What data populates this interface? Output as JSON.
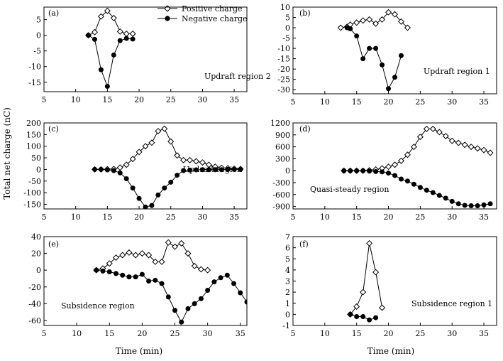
{
  "figure": {
    "ylabel": "Total net charge (nC)",
    "xlabel": "Time (min)",
    "legend": {
      "positive": "Positive charge",
      "negative": "Negative charge",
      "placement": "top-center of panel (a)"
    }
  },
  "chart_data": [
    {
      "id": "a",
      "type": "line",
      "panel_label": "(a)",
      "annotation": "Updraft region 2",
      "xlim": [
        5,
        37
      ],
      "ylim": [
        -18,
        9
      ],
      "xticks": [
        5,
        10,
        15,
        20,
        25,
        30,
        35
      ],
      "yticks": [
        5,
        0,
        -5,
        -10,
        -15
      ],
      "xlabel": "",
      "ylabel": "Total net charge (nC)",
      "series": [
        {
          "name": "Positive charge",
          "x": [
            12,
            13,
            14,
            15,
            16,
            17,
            18,
            19
          ],
          "values": [
            0,
            1,
            6,
            7.8,
            5.5,
            1.2,
            0.5,
            0.5
          ]
        },
        {
          "name": "Negative charge",
          "x": [
            12,
            13,
            14,
            15,
            16,
            17,
            18,
            19
          ],
          "values": [
            0,
            -1.3,
            -11,
            -16.3,
            -6.3,
            -1.7,
            -1,
            -1.2
          ]
        }
      ]
    },
    {
      "id": "b",
      "type": "line",
      "panel_label": "(b)",
      "annotation": "Updraft region 1",
      "xlim": [
        5,
        37
      ],
      "ylim": [
        -32,
        10
      ],
      "xticks": [
        5,
        10,
        15,
        20,
        25,
        30,
        35
      ],
      "yticks": [
        10,
        5,
        0,
        -5,
        -10,
        -15,
        -20,
        -25,
        -30
      ],
      "xlabel": "",
      "ylabel": "Total net charge (nC)",
      "series": [
        {
          "name": "Positive charge",
          "x": [
            12.5,
            13.5,
            14,
            15,
            16,
            17,
            18,
            19,
            20,
            21,
            22,
            23
          ],
          "values": [
            0,
            0.5,
            1.5,
            2.5,
            3.5,
            4,
            2,
            4,
            7.5,
            6.5,
            3,
            0
          ]
        },
        {
          "name": "Negative charge",
          "x": [
            13.5,
            14,
            15,
            16,
            17,
            18,
            19,
            20,
            21,
            22
          ],
          "values": [
            0,
            -0.5,
            -4,
            -15,
            -10,
            -10,
            -18,
            -29.5,
            -24,
            -13.5
          ]
        }
      ]
    },
    {
      "id": "c",
      "type": "line",
      "panel_label": "(c)",
      "annotation": "Updraft region",
      "xlim": [
        5,
        37
      ],
      "ylim": [
        -170,
        200
      ],
      "xticks": [
        5,
        10,
        15,
        20,
        25,
        30,
        35
      ],
      "yticks": [
        200,
        150,
        100,
        50,
        0,
        -50,
        -100,
        -150
      ],
      "xlabel": "",
      "ylabel": "Total net charge (nC)",
      "series": [
        {
          "name": "Positive charge",
          "x": [
            13,
            14,
            15,
            16,
            17,
            18,
            19,
            20,
            21,
            22,
            23,
            24,
            25,
            26,
            27,
            28,
            29,
            30,
            31,
            32,
            33,
            34,
            35,
            36
          ],
          "values": [
            0,
            0,
            1,
            2,
            8,
            20,
            45,
            75,
            100,
            115,
            165,
            175,
            120,
            60,
            40,
            40,
            35,
            30,
            20,
            12,
            7,
            5,
            3,
            2
          ]
        },
        {
          "name": "Negative charge",
          "x": [
            13,
            14,
            15,
            16,
            17,
            18,
            19,
            20,
            21,
            22,
            23,
            24,
            25,
            26,
            27,
            28,
            29,
            30,
            31,
            32,
            33,
            34,
            35,
            36
          ],
          "values": [
            0,
            0,
            -2,
            -5,
            -15,
            -40,
            -80,
            -125,
            -162,
            -155,
            -110,
            -80,
            -55,
            -25,
            -5,
            -3,
            -2,
            -1,
            -1,
            -1,
            -1,
            0,
            0,
            0
          ]
        }
      ]
    },
    {
      "id": "d",
      "type": "line",
      "panel_label": "(d)",
      "annotation": "Quasi-steady region",
      "xlim": [
        5,
        37
      ],
      "ylim": [
        -960,
        1200
      ],
      "xticks": [
        5,
        10,
        15,
        20,
        25,
        30,
        35
      ],
      "yticks": [
        1200,
        900,
        600,
        300,
        0,
        -300,
        -600,
        -900
      ],
      "xlabel": "",
      "ylabel": "Total net charge (nC)",
      "series": [
        {
          "name": "Positive charge",
          "x": [
            13,
            14,
            15,
            16,
            17,
            18,
            19,
            20,
            21,
            22,
            23,
            24,
            25,
            26,
            27,
            28,
            29,
            30,
            31,
            32,
            33,
            34,
            35,
            36
          ],
          "values": [
            0,
            0,
            0,
            0,
            10,
            30,
            60,
            100,
            150,
            250,
            400,
            600,
            850,
            1050,
            1050,
            970,
            870,
            750,
            700,
            650,
            600,
            560,
            520,
            450
          ]
        },
        {
          "name": "Negative charge",
          "x": [
            13,
            14,
            15,
            16,
            17,
            18,
            19,
            20,
            21,
            22,
            23,
            24,
            25,
            26,
            27,
            28,
            29,
            30,
            31,
            32,
            33,
            34,
            35,
            36
          ],
          "values": [
            0,
            0,
            0,
            0,
            -10,
            -20,
            -30,
            -60,
            -120,
            -210,
            -260,
            -340,
            -420,
            -490,
            -550,
            -620,
            -690,
            -770,
            -830,
            -870,
            -880,
            -880,
            -860,
            -830
          ]
        }
      ]
    },
    {
      "id": "e",
      "type": "line",
      "panel_label": "(e)",
      "annotation": "Subsidence region",
      "xlim": [
        5,
        36
      ],
      "ylim": [
        -66,
        40
      ],
      "xticks": [
        5,
        10,
        15,
        20,
        25,
        30,
        35
      ],
      "yticks": [
        40,
        20,
        0,
        -20,
        -40,
        -60
      ],
      "xlabel": "Time (min)",
      "ylabel": "Total net charge (nC)",
      "series": [
        {
          "name": "Positive charge",
          "x": [
            13,
            14,
            15,
            16,
            17,
            18,
            19,
            20,
            21,
            22,
            23,
            24,
            25,
            26,
            27,
            28,
            29,
            30
          ],
          "values": [
            0,
            2,
            8,
            15,
            18,
            21,
            18,
            20,
            18,
            10,
            10,
            33,
            28,
            32,
            20,
            5,
            1,
            0
          ]
        },
        {
          "name": "Negative charge",
          "x": [
            13,
            14,
            15,
            16,
            17,
            18,
            19,
            20,
            21,
            22,
            23,
            24,
            25,
            26,
            27,
            28,
            29,
            30,
            31,
            32,
            33,
            34,
            35,
            36
          ],
          "values": [
            0,
            -1,
            -2,
            -4,
            -6,
            -8,
            -8,
            -5,
            -13,
            -12,
            -16,
            -32,
            -48,
            -62,
            -46,
            -40,
            -34,
            -24,
            -14,
            -9,
            -6,
            -16,
            -27,
            -38
          ]
        }
      ]
    },
    {
      "id": "f",
      "type": "line",
      "panel_label": "(f)",
      "annotation": "Subsidence region 1",
      "xlim": [
        5,
        37
      ],
      "ylim": [
        -1,
        7
      ],
      "xticks": [
        5,
        10,
        15,
        20,
        25,
        30,
        35
      ],
      "yticks": [
        7,
        6,
        5,
        4,
        3,
        2,
        1,
        0,
        -1
      ],
      "xlabel": "Time (min)",
      "ylabel": "Total net charge (nC)",
      "series": [
        {
          "name": "Positive charge",
          "x": [
            14,
            15,
            16,
            17,
            18,
            19
          ],
          "values": [
            0,
            0.7,
            2,
            6.4,
            3.8,
            0.6
          ]
        },
        {
          "name": "Negative charge",
          "x": [
            14,
            15,
            16,
            17,
            18
          ],
          "values": [
            0,
            -0.2,
            -0.2,
            -0.5,
            -0.3
          ]
        }
      ]
    }
  ]
}
